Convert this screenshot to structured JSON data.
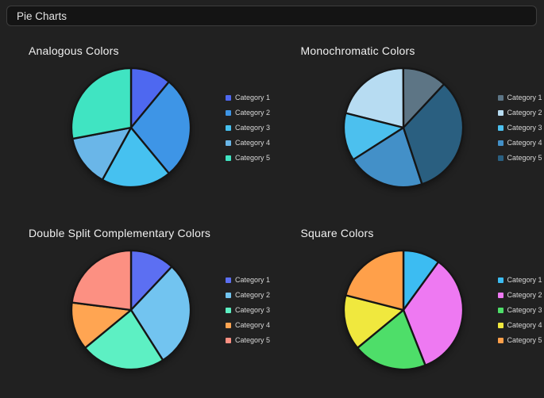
{
  "page": {
    "title": "Pie Charts"
  },
  "chart_data": [
    {
      "type": "pie",
      "title": "Analogous Colors",
      "labels": [
        "Category 1",
        "Category 2",
        "Category 3",
        "Category 4",
        "Category 5"
      ],
      "values": [
        11,
        28,
        19,
        14,
        28
      ],
      "colors": [
        "#4e68f0",
        "#3e95e6",
        "#46c1f0",
        "#6ab6e8",
        "#40e4c2"
      ],
      "legend_position": "right",
      "clockwise": true,
      "start_deg": 0
    },
    {
      "type": "pie",
      "title": "Monochromatic Colors",
      "labels": [
        "Category 1",
        "Category 2",
        "Category 3",
        "Category 4",
        "Category 5"
      ],
      "values": [
        12,
        21,
        13,
        21,
        33
      ],
      "colors": [
        "#5d7585",
        "#b7dcf2",
        "#4cc0ee",
        "#4390c8",
        "#2a5f80"
      ],
      "legend_position": "right",
      "clockwise": false,
      "start_deg": 43
    },
    {
      "type": "pie",
      "title": "Double Split Complementary Colors",
      "labels": [
        "Category 1",
        "Category 2",
        "Category 3",
        "Category 4",
        "Category 5"
      ],
      "values": [
        12,
        29,
        23,
        13,
        23
      ],
      "colors": [
        "#5c6ff2",
        "#72c4f0",
        "#5df0c3",
        "#ffa552",
        "#fc9082"
      ],
      "legend_position": "right",
      "clockwise": true,
      "start_deg": 0
    },
    {
      "type": "pie",
      "title": "Square Colors",
      "labels": [
        "Category 1",
        "Category 2",
        "Category 3",
        "Category 4",
        "Category 5"
      ],
      "values": [
        10,
        34,
        20,
        15,
        21
      ],
      "colors": [
        "#3cbcf2",
        "#ee79f2",
        "#4ede69",
        "#f0e83e",
        "#ffa04a"
      ],
      "legend_position": "right",
      "clockwise": true,
      "start_deg": 0
    }
  ]
}
